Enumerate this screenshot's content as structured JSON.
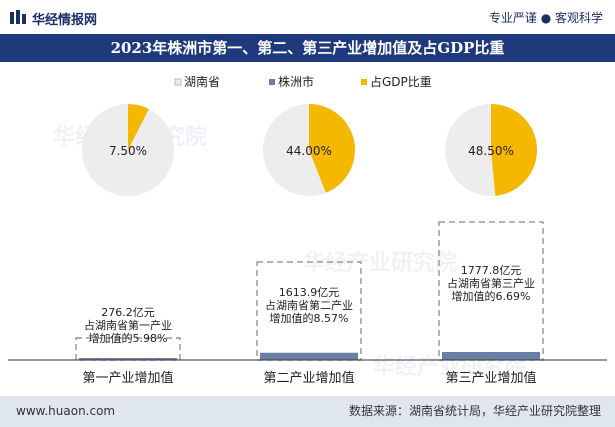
{
  "header": {
    "logo_text": "华经情报网",
    "slogan": "专业严谨 ● 客观科学",
    "logo_icon": "bar-logo-icon"
  },
  "title": "2023年株洲市第一、第二、第三产业增加值及占GDP比重",
  "watermark": "华经产业研究院",
  "colors": {
    "hunan": "#ededed",
    "zhuzhou": "#6b7fa6",
    "share": "#f5b800",
    "title_bg": "#1f3a7c"
  },
  "chart_data": {
    "type": "pie",
    "title": "2023年株洲市第一、第二、第三产业增加值及占GDP比重",
    "legend": [
      "湖南省",
      "株洲市",
      "占GDP比重"
    ],
    "categories": [
      "第一产业增加值",
      "第二产业增加值",
      "第三产业增加值"
    ],
    "share_pct": [
      7.5,
      44.0,
      48.5
    ],
    "share_labels": [
      "7.50%",
      "44.00%",
      "48.50%"
    ],
    "zhuzhou_value": [
      276.2,
      1613.9,
      1777.8
    ],
    "zhuzhou_unit": "亿元",
    "share_of_hunan_pct": [
      5.98,
      8.57,
      6.69
    ],
    "annotations": [
      [
        "276.2亿元",
        "占湖南省第一产业",
        "增加值的5.98%"
      ],
      [
        "1613.9亿元",
        "占湖南省第二产业",
        "增加值的8.57%"
      ],
      [
        "1777.8亿元",
        "占湖南省第三产业",
        "增加值的6.69%"
      ]
    ]
  },
  "footer": {
    "url": "www.huaon.com",
    "source": "数据来源：湖南省统计局，华经产业研究院整理"
  }
}
